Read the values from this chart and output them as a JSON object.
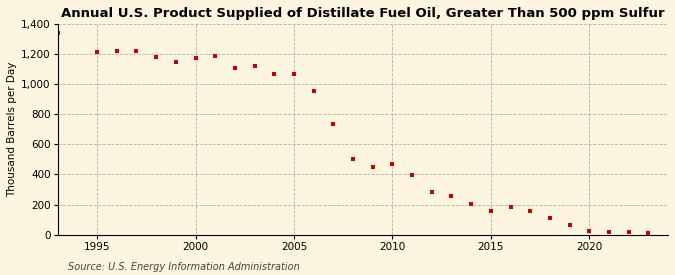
{
  "title": "Annual U.S. Product Supplied of Distillate Fuel Oil, Greater Than 500 ppm Sulfur",
  "ylabel": "Thousand Barrels per Day",
  "source": "Source: U.S. Energy Information Administration",
  "background_color": "#fdf5e0",
  "plot_bg_color": "#fdf5e0",
  "marker_color": "#cc0000",
  "marker": "s",
  "markersize": 3.5,
  "years": [
    1993,
    1995,
    1996,
    1997,
    1998,
    1999,
    2000,
    2001,
    2002,
    2003,
    2004,
    2005,
    2006,
    2007,
    2008,
    2009,
    2010,
    2011,
    2012,
    2013,
    2014,
    2015,
    2016,
    2017,
    2018,
    2019,
    2020,
    2021,
    2022,
    2023
  ],
  "values": [
    1340,
    1215,
    1220,
    1220,
    1180,
    1145,
    1175,
    1185,
    1110,
    1120,
    1070,
    1065,
    955,
    735,
    500,
    450,
    470,
    395,
    280,
    255,
    205,
    160,
    185,
    160,
    110,
    65,
    25,
    15,
    15,
    10
  ],
  "xlim": [
    1993,
    2024
  ],
  "ylim": [
    0,
    1400
  ],
  "yticks": [
    0,
    200,
    400,
    600,
    800,
    1000,
    1200,
    1400
  ],
  "xticks": [
    1995,
    2000,
    2005,
    2010,
    2015,
    2020
  ],
  "grid_color": "#aaaaaa",
  "title_fontsize": 9.5,
  "label_fontsize": 7.5,
  "tick_fontsize": 7.5,
  "source_fontsize": 7
}
